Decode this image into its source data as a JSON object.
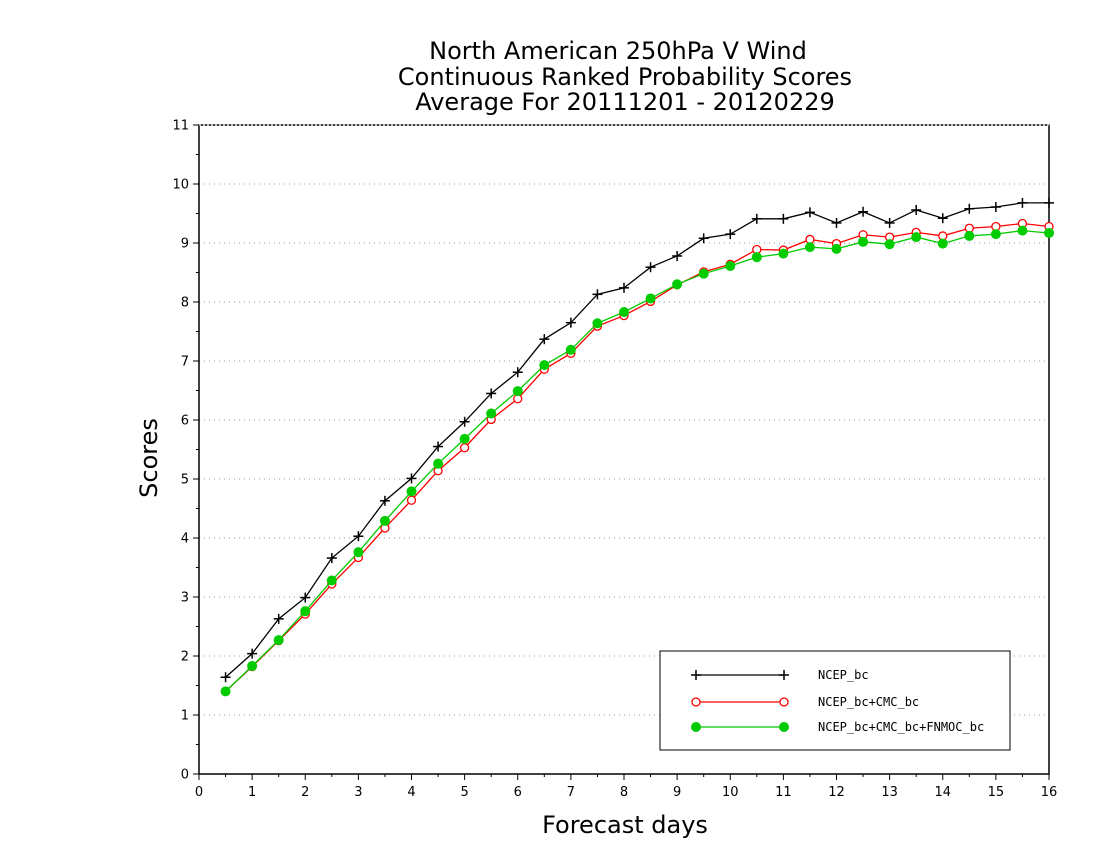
{
  "chart_data": {
    "type": "line",
    "title": [
      "North American 250hPa V Wind",
      "Continuous Ranked Probability Scores",
      "Average For 20111201 - 20120229"
    ],
    "xlabel": "Forecast days",
    "ylabel": "Scores",
    "xlim": [
      0,
      16
    ],
    "ylim": [
      0,
      11
    ],
    "xticks": [
      0,
      1,
      2,
      3,
      4,
      5,
      6,
      7,
      8,
      9,
      10,
      11,
      12,
      13,
      14,
      15,
      16
    ],
    "yticks": [
      0,
      1,
      2,
      3,
      4,
      5,
      6,
      7,
      8,
      9,
      10,
      11
    ],
    "grid": true,
    "legend_position": "bottom-right",
    "x": [
      0.5,
      1,
      1.5,
      2,
      2.5,
      3,
      3.5,
      4,
      4.5,
      5,
      5.5,
      6,
      6.5,
      7,
      7.5,
      8,
      8.5,
      9,
      9.5,
      10,
      10.5,
      11,
      11.5,
      12,
      12.5,
      13,
      13.5,
      14,
      14.5,
      15,
      15.5,
      16
    ],
    "series": [
      {
        "name": "NCEP_bc",
        "color": "#000000",
        "marker": "plus",
        "values": [
          1.64,
          2.04,
          2.63,
          2.99,
          3.66,
          4.03,
          4.63,
          5.01,
          5.55,
          5.97,
          6.45,
          6.81,
          7.37,
          7.65,
          8.13,
          8.24,
          8.59,
          8.78,
          9.08,
          9.15,
          9.41,
          9.41,
          9.52,
          9.34,
          9.53,
          9.34,
          9.56,
          9.42,
          9.58,
          9.61,
          9.68,
          9.68
        ]
      },
      {
        "name": "NCEP_bc+CMC_bc",
        "color": "#ff0000",
        "marker": "open-circle",
        "values": [
          1.4,
          1.82,
          2.26,
          2.71,
          3.22,
          3.67,
          4.17,
          4.64,
          5.14,
          5.53,
          6.01,
          6.36,
          6.86,
          7.13,
          7.59,
          7.77,
          8.01,
          8.29,
          8.51,
          8.64,
          8.89,
          8.88,
          9.06,
          8.99,
          9.14,
          9.1,
          9.18,
          9.12,
          9.25,
          9.28,
          9.33,
          9.28
        ]
      },
      {
        "name": "NCEP_bc+CMC_bc+FNMOC_bc",
        "color": "#00cc00",
        "marker": "filled-circle",
        "values": [
          1.4,
          1.83,
          2.27,
          2.76,
          3.28,
          3.76,
          4.29,
          4.79,
          5.26,
          5.68,
          6.11,
          6.49,
          6.93,
          7.19,
          7.64,
          7.83,
          8.06,
          8.3,
          8.48,
          8.61,
          8.76,
          8.82,
          8.93,
          8.9,
          9.02,
          8.98,
          9.1,
          8.99,
          9.12,
          9.15,
          9.21,
          9.17
        ]
      }
    ]
  }
}
